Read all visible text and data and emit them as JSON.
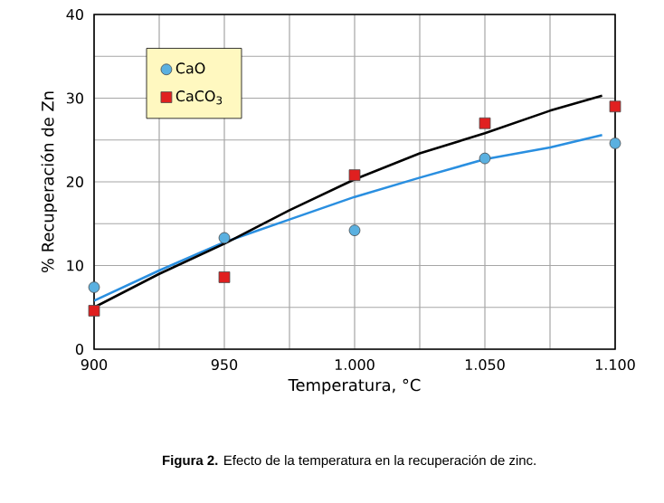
{
  "chart_data": {
    "type": "scatter",
    "xlabel": "Temperatura, °C",
    "ylabel": "% Recuperación de Zn",
    "annotations": [
      "**Figura 2.** Efecto de la temperatura en la recuperación de zinc."
    ],
    "xlim": [
      900,
      1100
    ],
    "ylim": [
      0,
      40
    ],
    "xticks": [
      900,
      {
        "value": 925,
        "label": null
      },
      950,
      {
        "value": 975,
        "label": null
      },
      {
        "value": 1000,
        "label": "1.000"
      },
      {
        "value": 1025,
        "label": null
      },
      {
        "value": 1050,
        "label": "1.050"
      },
      {
        "value": 1075,
        "label": null
      },
      {
        "value": 1100,
        "label": "1.100"
      }
    ],
    "yticks": [
      0,
      {
        "value": 5,
        "label": null
      },
      10,
      {
        "value": 15,
        "label": null
      },
      20,
      {
        "value": 25,
        "label": null
      },
      30,
      {
        "value": 35,
        "label": null
      },
      40
    ],
    "grid": true,
    "legend": "top left",
    "series": [
      {
        "type": "line",
        "color": "#2a8fe0",
        "marker": "none",
        "x": [
          900,
          925,
          950,
          975,
          1000,
          1025,
          1050,
          1075,
          1095
        ],
        "values": [
          5.8,
          9.4,
          12.8,
          15.5,
          18.2,
          20.5,
          22.7,
          24.1,
          25.6
        ]
      },
      {
        "type": "line",
        "color": "#000000",
        "marker": "none",
        "x": [
          900,
          925,
          950,
          975,
          1000,
          1025,
          1050,
          1075,
          1095
        ],
        "values": [
          5.0,
          9.0,
          12.6,
          16.6,
          20.3,
          23.4,
          25.8,
          28.5,
          30.3
        ]
      },
      {
        "name": "CaO",
        "color": "#5ab0e0",
        "marker": "circle",
        "x": [
          900,
          950,
          1000,
          1050,
          1100
        ],
        "values": [
          7.4,
          13.3,
          14.2,
          22.8,
          24.6
        ]
      },
      {
        "name": "CaCO$_{3}$",
        "color": "#e02020",
        "marker": "square",
        "x": [
          900,
          950,
          1000,
          1050,
          1100
        ],
        "values": [
          4.6,
          8.6,
          20.8,
          27.0,
          29.0
        ]
      }
    ]
  }
}
